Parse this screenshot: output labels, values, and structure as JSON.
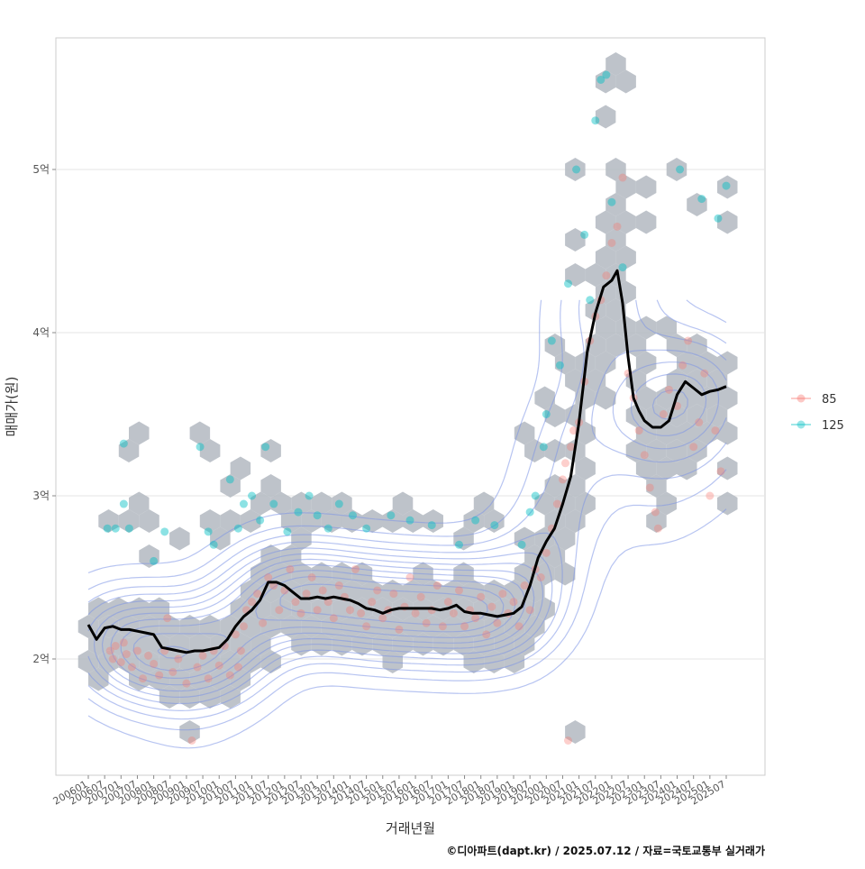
{
  "chart_data": {
    "type": "scatter",
    "xlabel": "거래년월",
    "ylabel": "매매가(원)",
    "caption": "©디아파트(dapt.kr) / 2025.07.12 / 자료=국토교통부 실거래가",
    "xlim": [
      "2006-01",
      "2025-07"
    ],
    "ylim": [
      1.3,
      5.8
    ],
    "y_ticks": [
      {
        "value": 2,
        "label": "2억"
      },
      {
        "value": 3,
        "label": "3억"
      },
      {
        "value": 4,
        "label": "4억"
      },
      {
        "value": 5,
        "label": "5억"
      }
    ],
    "x_ticks": [
      "200601",
      "200607",
      "200701",
      "200707",
      "200801",
      "200807",
      "200901",
      "200907",
      "201001",
      "201007",
      "201101",
      "201107",
      "201201",
      "201207",
      "201301",
      "201307",
      "201401",
      "201407",
      "201501",
      "201507",
      "201601",
      "201607",
      "201701",
      "201707",
      "201801",
      "201807",
      "201901",
      "201907",
      "202001",
      "202007",
      "202101",
      "202107",
      "202201",
      "202207",
      "202301",
      "202307",
      "202401",
      "202407",
      "202501",
      "202507"
    ],
    "grid": true,
    "legend_position": "right",
    "legend": [
      {
        "name": "85",
        "color": "#F8766D"
      },
      {
        "name": "125",
        "color": "#00BFC4"
      }
    ],
    "colors": {
      "hex_fill": "#b3b9c1",
      "contour": "#7b93e6",
      "trend": "#000000",
      "grid": "#e6e6e6",
      "panel_border": "#cccccc"
    },
    "trend_line": [
      [
        "2006-01",
        2.21
      ],
      [
        "2006-04",
        2.12
      ],
      [
        "2006-07",
        2.19
      ],
      [
        "2006-10",
        2.2
      ],
      [
        "2007-01",
        2.18
      ],
      [
        "2007-04",
        2.18
      ],
      [
        "2007-07",
        2.17
      ],
      [
        "2007-10",
        2.16
      ],
      [
        "2008-01",
        2.15
      ],
      [
        "2008-04",
        2.07
      ],
      [
        "2008-07",
        2.06
      ],
      [
        "2008-10",
        2.05
      ],
      [
        "2009-01",
        2.04
      ],
      [
        "2009-04",
        2.05
      ],
      [
        "2009-07",
        2.05
      ],
      [
        "2009-10",
        2.06
      ],
      [
        "2010-01",
        2.07
      ],
      [
        "2010-04",
        2.12
      ],
      [
        "2010-07",
        2.2
      ],
      [
        "2010-10",
        2.26
      ],
      [
        "2011-01",
        2.3
      ],
      [
        "2011-04",
        2.36
      ],
      [
        "2011-07",
        2.47
      ],
      [
        "2011-10",
        2.47
      ],
      [
        "2012-01",
        2.45
      ],
      [
        "2012-04",
        2.41
      ],
      [
        "2012-07",
        2.37
      ],
      [
        "2012-10",
        2.37
      ],
      [
        "2013-01",
        2.38
      ],
      [
        "2013-04",
        2.37
      ],
      [
        "2013-07",
        2.38
      ],
      [
        "2013-10",
        2.37
      ],
      [
        "2014-01",
        2.36
      ],
      [
        "2014-04",
        2.34
      ],
      [
        "2014-07",
        2.31
      ],
      [
        "2014-10",
        2.3
      ],
      [
        "2015-01",
        2.28
      ],
      [
        "2015-04",
        2.3
      ],
      [
        "2015-07",
        2.31
      ],
      [
        "2015-10",
        2.31
      ],
      [
        "2016-01",
        2.31
      ],
      [
        "2016-04",
        2.31
      ],
      [
        "2016-07",
        2.31
      ],
      [
        "2016-10",
        2.3
      ],
      [
        "2017-01",
        2.31
      ],
      [
        "2017-04",
        2.33
      ],
      [
        "2017-07",
        2.29
      ],
      [
        "2017-10",
        2.28
      ],
      [
        "2018-01",
        2.28
      ],
      [
        "2018-04",
        2.27
      ],
      [
        "2018-07",
        2.26
      ],
      [
        "2018-10",
        2.27
      ],
      [
        "2019-01",
        2.28
      ],
      [
        "2019-04",
        2.32
      ],
      [
        "2019-07",
        2.45
      ],
      [
        "2019-10",
        2.62
      ],
      [
        "2020-01",
        2.72
      ],
      [
        "2020-04",
        2.8
      ],
      [
        "2020-07",
        2.95
      ],
      [
        "2020-10",
        3.12
      ],
      [
        "2021-01",
        3.45
      ],
      [
        "2021-04",
        3.88
      ],
      [
        "2021-07",
        4.12
      ],
      [
        "2021-10",
        4.28
      ],
      [
        "2022-01",
        4.32
      ],
      [
        "2022-03",
        4.38
      ],
      [
        "2022-05",
        4.18
      ],
      [
        "2022-07",
        3.85
      ],
      [
        "2022-09",
        3.6
      ],
      [
        "2022-11",
        3.52
      ],
      [
        "2023-01",
        3.46
      ],
      [
        "2023-04",
        3.42
      ],
      [
        "2023-07",
        3.42
      ],
      [
        "2023-10",
        3.46
      ],
      [
        "2024-01",
        3.62
      ],
      [
        "2024-04",
        3.7
      ],
      [
        "2024-07",
        3.66
      ],
      [
        "2024-10",
        3.62
      ],
      [
        "2025-01",
        3.64
      ],
      [
        "2025-04",
        3.65
      ],
      [
        "2025-07",
        3.67
      ]
    ],
    "hex_bins": [
      [
        "2006-06",
        2.3
      ],
      [
        "2006-07",
        2.8
      ],
      [
        "2007-02",
        3.38
      ],
      [
        "2007-03",
        2.8
      ],
      [
        "2008-01",
        2.6
      ],
      [
        "2008-03",
        2.8
      ],
      [
        "2008-03",
        2.3
      ],
      [
        "2009-05",
        3.38
      ],
      [
        "2009-08",
        2.8
      ],
      [
        "2010-04",
        3.15
      ],
      [
        "2010-10",
        3.0
      ],
      [
        "2011-05",
        3.28
      ],
      [
        "2011-10",
        3.02
      ],
      [
        "2012-04",
        2.8
      ],
      [
        "2012-08",
        2.98
      ],
      [
        "2013-02",
        2.9
      ],
      [
        "2013-07",
        2.8
      ],
      [
        "2014-03",
        2.88
      ],
      [
        "2015-01",
        2.9
      ],
      [
        "2015-09",
        2.88
      ],
      [
        "2016-06",
        2.8
      ],
      [
        "2017-08",
        2.9
      ],
      [
        "2018-05",
        2.8
      ],
      [
        "2019-02",
        3.38
      ],
      [
        "2019-09",
        3.62
      ],
      [
        "2020-03",
        3.28
      ],
      [
        "2020-09",
        1.5
      ],
      [
        "2020-09",
        3.82
      ],
      [
        "2021-01",
        5.02
      ],
      [
        "2021-05",
        4.68
      ],
      [
        "2021-09",
        5.28
      ],
      [
        "2021-09",
        5.5
      ],
      [
        "2021-12",
        5.62
      ],
      [
        "2022-01",
        4.9
      ],
      [
        "2022-03",
        4.45
      ],
      [
        "2022-07",
        4.68
      ],
      [
        "2022-07",
        4.92
      ],
      [
        "2023-05",
        4.08
      ],
      [
        "2023-10",
        3.95
      ],
      [
        "2024-02",
        5.02
      ],
      [
        "2024-11",
        4.8
      ],
      [
        "2025-01",
        4.7
      ],
      [
        "2025-07",
        4.9
      ],
      [
        "2009-03",
        1.5
      ],
      [
        "2009-04",
        1.75
      ],
      [
        "2010-06",
        1.75
      ],
      [
        "2011-10",
        1.95
      ]
    ],
    "points_85": [
      [
        "2006-09",
        2.05
      ],
      [
        "2006-10",
        2.0
      ],
      [
        "2006-11",
        2.08
      ],
      [
        "2007-01",
        1.98
      ],
      [
        "2007-02",
        2.1
      ],
      [
        "2007-03",
        2.03
      ],
      [
        "2007-05",
        1.95
      ],
      [
        "2007-07",
        2.05
      ],
      [
        "2007-09",
        1.88
      ],
      [
        "2007-11",
        2.02
      ],
      [
        "2008-01",
        1.97
      ],
      [
        "2008-03",
        1.9
      ],
      [
        "2008-05",
        2.05
      ],
      [
        "2008-06",
        2.25
      ],
      [
        "2008-08",
        1.92
      ],
      [
        "2008-10",
        2.0
      ],
      [
        "2009-01",
        1.85
      ],
      [
        "2009-03",
        1.5
      ],
      [
        "2009-05",
        1.95
      ],
      [
        "2009-07",
        2.02
      ],
      [
        "2009-09",
        1.88
      ],
      [
        "2009-11",
        2.05
      ],
      [
        "2010-01",
        1.96
      ],
      [
        "2010-03",
        2.08
      ],
      [
        "2010-05",
        1.9
      ],
      [
        "2010-07",
        2.15
      ],
      [
        "2010-08",
        1.95
      ],
      [
        "2010-09",
        2.05
      ],
      [
        "2010-10",
        2.2
      ],
      [
        "2010-11",
        2.3
      ],
      [
        "2011-01",
        2.35
      ],
      [
        "2011-03",
        2.4
      ],
      [
        "2011-05",
        2.22
      ],
      [
        "2011-07",
        2.5
      ],
      [
        "2011-09",
        2.45
      ],
      [
        "2011-11",
        2.3
      ],
      [
        "2012-01",
        2.42
      ],
      [
        "2012-03",
        2.55
      ],
      [
        "2012-05",
        2.35
      ],
      [
        "2012-07",
        2.28
      ],
      [
        "2012-09",
        2.4
      ],
      [
        "2012-11",
        2.5
      ],
      [
        "2013-01",
        2.3
      ],
      [
        "2013-03",
        2.42
      ],
      [
        "2013-05",
        2.35
      ],
      [
        "2013-07",
        2.25
      ],
      [
        "2013-09",
        2.45
      ],
      [
        "2013-11",
        2.38
      ],
      [
        "2014-01",
        2.3
      ],
      [
        "2014-03",
        2.55
      ],
      [
        "2014-05",
        2.28
      ],
      [
        "2014-07",
        2.2
      ],
      [
        "2014-09",
        2.35
      ],
      [
        "2014-11",
        2.42
      ],
      [
        "2015-01",
        2.25
      ],
      [
        "2015-03",
        2.3
      ],
      [
        "2015-05",
        2.4
      ],
      [
        "2015-07",
        2.18
      ],
      [
        "2015-09",
        2.32
      ],
      [
        "2015-11",
        2.5
      ],
      [
        "2016-01",
        2.28
      ],
      [
        "2016-03",
        2.38
      ],
      [
        "2016-05",
        2.22
      ],
      [
        "2016-07",
        2.3
      ],
      [
        "2016-09",
        2.45
      ],
      [
        "2016-11",
        2.2
      ],
      [
        "2017-01",
        2.35
      ],
      [
        "2017-03",
        2.28
      ],
      [
        "2017-05",
        2.42
      ],
      [
        "2017-07",
        2.2
      ],
      [
        "2017-09",
        2.3
      ],
      [
        "2017-11",
        2.25
      ],
      [
        "2018-01",
        2.38
      ],
      [
        "2018-03",
        2.15
      ],
      [
        "2018-05",
        2.32
      ],
      [
        "2018-07",
        2.22
      ],
      [
        "2018-09",
        2.4
      ],
      [
        "2018-11",
        2.28
      ],
      [
        "2019-01",
        2.35
      ],
      [
        "2019-03",
        2.2
      ],
      [
        "2019-05",
        2.45
      ],
      [
        "2019-07",
        2.3
      ],
      [
        "2019-09",
        2.55
      ],
      [
        "2019-11",
        2.5
      ],
      [
        "2020-01",
        2.65
      ],
      [
        "2020-03",
        2.8
      ],
      [
        "2020-05",
        2.95
      ],
      [
        "2020-07",
        3.1
      ],
      [
        "2020-08",
        3.2
      ],
      [
        "2020-09",
        1.5
      ],
      [
        "2020-10",
        3.3
      ],
      [
        "2020-11",
        3.4
      ],
      [
        "2021-01",
        3.45
      ],
      [
        "2021-03",
        3.7
      ],
      [
        "2021-05",
        3.95
      ],
      [
        "2021-07",
        4.1
      ],
      [
        "2021-09",
        4.2
      ],
      [
        "2021-11",
        4.35
      ],
      [
        "2022-01",
        4.55
      ],
      [
        "2022-03",
        4.65
      ],
      [
        "2022-05",
        4.95
      ],
      [
        "2022-07",
        3.75
      ],
      [
        "2022-09",
        3.6
      ],
      [
        "2022-11",
        3.4
      ],
      [
        "2023-01",
        3.25
      ],
      [
        "2023-03",
        3.05
      ],
      [
        "2023-05",
        2.9
      ],
      [
        "2023-06",
        2.8
      ],
      [
        "2023-08",
        3.5
      ],
      [
        "2023-10",
        3.65
      ],
      [
        "2024-01",
        3.55
      ],
      [
        "2024-03",
        3.8
      ],
      [
        "2024-05",
        3.95
      ],
      [
        "2024-07",
        3.3
      ],
      [
        "2024-09",
        3.45
      ],
      [
        "2024-11",
        3.75
      ],
      [
        "2025-01",
        3.0
      ],
      [
        "2025-03",
        3.4
      ],
      [
        "2025-05",
        3.15
      ]
    ],
    "points_125": [
      [
        "2006-08",
        2.8
      ],
      [
        "2006-11",
        2.8
      ],
      [
        "2007-02",
        3.32
      ],
      [
        "2007-02",
        2.95
      ],
      [
        "2007-04",
        2.8
      ],
      [
        "2008-01",
        2.6
      ],
      [
        "2008-05",
        2.78
      ],
      [
        "2009-06",
        3.3
      ],
      [
        "2009-09",
        2.78
      ],
      [
        "2009-11",
        2.7
      ],
      [
        "2010-05",
        3.1
      ],
      [
        "2010-08",
        2.8
      ],
      [
        "2010-10",
        2.95
      ],
      [
        "2011-01",
        3.0
      ],
      [
        "2011-04",
        2.85
      ],
      [
        "2011-06",
        3.3
      ],
      [
        "2011-09",
        2.95
      ],
      [
        "2012-02",
        2.78
      ],
      [
        "2012-06",
        2.9
      ],
      [
        "2012-10",
        3.0
      ],
      [
        "2013-01",
        2.88
      ],
      [
        "2013-05",
        2.8
      ],
      [
        "2013-09",
        2.95
      ],
      [
        "2014-02",
        2.88
      ],
      [
        "2014-07",
        2.8
      ],
      [
        "2015-04",
        2.88
      ],
      [
        "2015-11",
        2.85
      ],
      [
        "2016-07",
        2.82
      ],
      [
        "2017-05",
        2.7
      ],
      [
        "2017-11",
        2.85
      ],
      [
        "2018-06",
        2.82
      ],
      [
        "2019-04",
        2.7
      ],
      [
        "2019-07",
        2.9
      ],
      [
        "2019-09",
        3.0
      ],
      [
        "2019-12",
        3.3
      ],
      [
        "2020-01",
        3.5
      ],
      [
        "2020-03",
        3.95
      ],
      [
        "2020-06",
        3.8
      ],
      [
        "2020-09",
        4.3
      ],
      [
        "2020-12",
        5.0
      ],
      [
        "2021-03",
        4.6
      ],
      [
        "2021-05",
        4.2
      ],
      [
        "2021-07",
        5.3
      ],
      [
        "2021-09",
        5.55
      ],
      [
        "2021-11",
        5.58
      ],
      [
        "2022-01",
        4.8
      ],
      [
        "2022-05",
        4.4
      ],
      [
        "2024-02",
        5.0
      ],
      [
        "2024-10",
        4.82
      ],
      [
        "2025-04",
        4.7
      ],
      [
        "2025-07",
        4.9
      ]
    ],
    "contours": {
      "levels": 11,
      "bandwidth_months": 14,
      "bandwidth_value": 0.22
    }
  }
}
